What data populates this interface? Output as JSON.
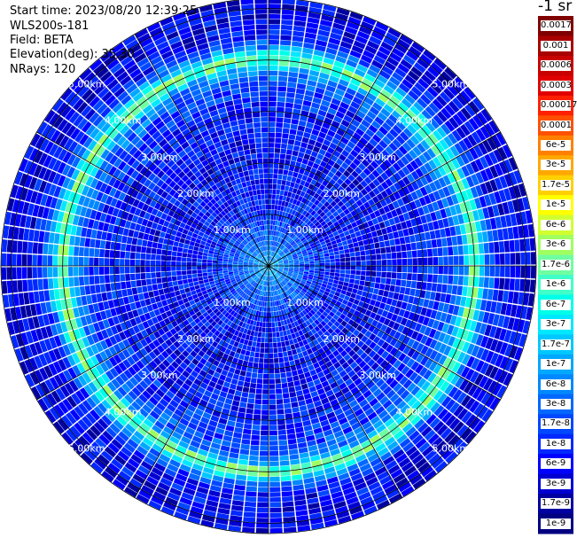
{
  "header": {
    "start_time": "Start time: 2023/08/20 12:39:25",
    "device": "WLS200s-181",
    "field": "Field: BETA",
    "elevation": "Elevation(deg): 35.30",
    "nrays": "NRays: 120"
  },
  "colorbar": {
    "unit_label": "-1 sr",
    "labels": [
      "0.0017",
      "0.001",
      "0.0006",
      "0.0003",
      "0.00017",
      "0.0001",
      "6e-5",
      "3e-5",
      "1.7e-5",
      "1e-5",
      "6e-6",
      "3e-6",
      "1.7e-6",
      "1e-6",
      "6e-7",
      "3e-7",
      "1.7e-7",
      "1e-7",
      "6e-8",
      "3e-8",
      "1.7e-8",
      "1e-8",
      "6e-9",
      "3e-9",
      "1.7e-9",
      "1e-9"
    ],
    "colors": [
      "#800000",
      "#a80000",
      "#c80000",
      "#e00000",
      "#ff2000",
      "#ff5000",
      "#ff8000",
      "#ffa800",
      "#ffd000",
      "#ffff00",
      "#d0ff30",
      "#a0ff60",
      "#70ffa0",
      "#40ffc8",
      "#00ffe8",
      "#00e8ff",
      "#00c8ff",
      "#00a8ff",
      "#0088ff",
      "#0068ff",
      "#0048ff",
      "#0028ff",
      "#0000ff",
      "#0000d0",
      "#0000a0",
      "#000080"
    ]
  },
  "chart_data": {
    "type": "heatmap",
    "projection": "polar-ppi",
    "range_rings_km": [
      1,
      2,
      3,
      4,
      5
    ],
    "ring_labels": [
      "1.00km",
      "2.00km",
      "3.00km",
      "4.00km",
      "5.00km"
    ],
    "max_range_km": 5.2,
    "nrays": 120,
    "spoke_angles_deg": [
      0,
      30,
      60,
      90,
      120,
      150,
      180,
      210,
      240,
      270,
      300,
      330
    ],
    "radial_profile": {
      "range_km": [
        0.0,
        0.3,
        0.6,
        0.9,
        1.2,
        1.5,
        2.0,
        2.5,
        3.0,
        3.5,
        3.8,
        4.0,
        4.2,
        4.4,
        4.7,
        5.2
      ],
      "log10_beta": [
        -6.8,
        -7.2,
        -7.5,
        -7.8,
        -8.0,
        -8.1,
        -8.15,
        -8.1,
        -8.0,
        -7.8,
        -7.2,
        -5.5,
        -7.0,
        -8.0,
        -8.2,
        -8.3
      ]
    },
    "color_scale": "log",
    "vmin": 1e-09,
    "vmax": 0.0017
  }
}
